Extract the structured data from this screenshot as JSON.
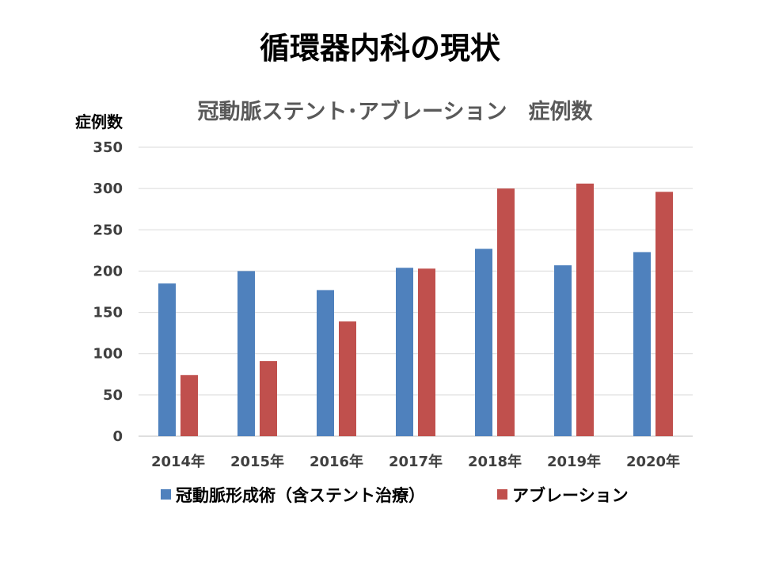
{
  "slide": {
    "title": "循環器内科の現状"
  },
  "chart_data": {
    "type": "bar",
    "title": "冠動脈ステント･アブレーション　症例数",
    "ylabel": "症例数",
    "xlabel": "",
    "categories": [
      "2014年",
      "2015年",
      "2016年",
      "2017年",
      "2018年",
      "2019年",
      "2020年"
    ],
    "yticks": [
      "0",
      "50",
      "100",
      "150",
      "200",
      "250",
      "300",
      "350"
    ],
    "ylim": [
      0,
      350
    ],
    "grid": true,
    "legend_position": "bottom",
    "series": [
      {
        "name": "冠動脈形成術（含ステント治療）",
        "color": "#4f81bd",
        "values": [
          185,
          200,
          177,
          204,
          227,
          207,
          223
        ]
      },
      {
        "name": "アブレーション",
        "color": "#c0504d",
        "values": [
          74,
          91,
          139,
          203,
          300,
          306,
          296
        ]
      }
    ]
  }
}
